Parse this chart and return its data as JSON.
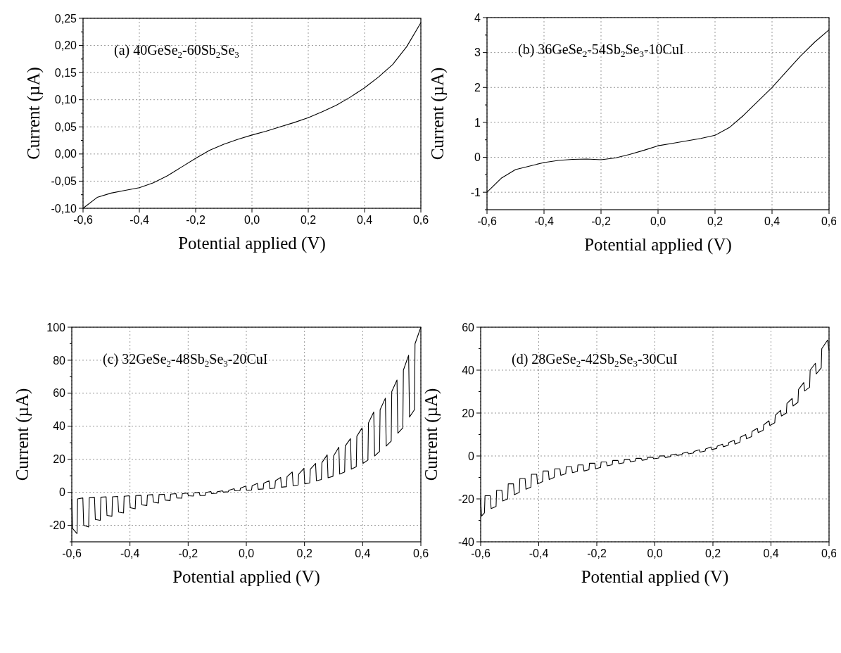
{
  "chart_data": [
    {
      "type": "line",
      "title": "(a) 40GeSe$_{2}$-60Sb$_{2}$Se$_{3}$",
      "xlabel": "Potential applied (V)",
      "ylabel": "Current (µA)",
      "grid": true,
      "xlim": [
        -0.6,
        0.6
      ],
      "xticks": [
        {
          "value": -0.6,
          "label": "-0,6"
        },
        {
          "value": -0.4,
          "label": "-0,4"
        },
        {
          "value": -0.2,
          "label": "-0,2"
        },
        {
          "value": 0,
          "label": "0,0"
        },
        {
          "value": 0.2,
          "label": "0,2"
        },
        {
          "value": 0.4,
          "label": "0,4"
        },
        {
          "value": 0.6,
          "label": "0,6"
        }
      ],
      "ylim": [
        -0.1,
        0.25
      ],
      "yticks": [
        {
          "value": -0.1,
          "label": "-0,10"
        },
        {
          "value": -0.075,
          "label": null
        },
        {
          "value": -0.05,
          "label": "-0,05"
        },
        {
          "value": -0.025,
          "label": null
        },
        {
          "value": 0,
          "label": "0,00"
        },
        {
          "value": 0.025,
          "label": null
        },
        {
          "value": 0.05,
          "label": "0,05"
        },
        {
          "value": 0.075,
          "label": null
        },
        {
          "value": 0.1,
          "label": "0,10"
        },
        {
          "value": 0.125,
          "label": null
        },
        {
          "value": 0.15,
          "label": "0,15"
        },
        {
          "value": 0.175,
          "label": null
        },
        {
          "value": 0.2,
          "label": "0,20"
        },
        {
          "value": 0.225,
          "label": null
        },
        {
          "value": 0.25,
          "label": "0,25"
        }
      ],
      "series": [
        {
          "color": "#000000",
          "x": [
            -0.6,
            -0.55,
            -0.5,
            -0.45,
            -0.4,
            -0.35,
            -0.3,
            -0.25,
            -0.2,
            -0.15,
            -0.1,
            -0.05,
            0,
            0.05,
            0.1,
            0.15,
            0.2,
            0.25,
            0.3,
            0.35,
            0.4,
            0.45,
            0.5,
            0.55,
            0.6
          ],
          "values": [
            -0.1,
            -0.08,
            -0.072,
            -0.067,
            -0.062,
            -0.053,
            -0.04,
            -0.024,
            -0.008,
            0.007,
            0.018,
            0.027,
            0.035,
            0.042,
            0.05,
            0.058,
            0.067,
            0.078,
            0.09,
            0.105,
            0.122,
            0.142,
            0.165,
            0.198,
            0.242
          ]
        }
      ]
    },
    {
      "type": "line",
      "title": "(b) 36GeSe$_{2}$-54Sb$_{2}$Se$_{3}$-10CuI",
      "xlabel": "Potential applied (V)",
      "ylabel": "Current (µA)",
      "grid": true,
      "xlim": [
        -0.6,
        0.6
      ],
      "xticks": [
        {
          "value": -0.6,
          "label": "-0,6"
        },
        {
          "value": -0.4,
          "label": "-0,4"
        },
        {
          "value": -0.2,
          "label": "-0,2"
        },
        {
          "value": 0,
          "label": "0,0"
        },
        {
          "value": 0.2,
          "label": "0,2"
        },
        {
          "value": 0.4,
          "label": "0,4"
        },
        {
          "value": 0.6,
          "label": "0,6"
        }
      ],
      "ylim": [
        -1.5,
        4
      ],
      "yticks": [
        {
          "value": -1.5,
          "label": null
        },
        -1,
        {
          "value": -0.5,
          "label": null
        },
        0,
        {
          "value": 0.5,
          "label": null
        },
        1,
        {
          "value": 1.5,
          "label": null
        },
        2,
        {
          "value": 2.5,
          "label": null
        },
        3,
        {
          "value": 3.5,
          "label": null
        },
        4
      ],
      "series": [
        {
          "color": "#000000",
          "x": [
            -0.6,
            -0.55,
            -0.5,
            -0.45,
            -0.4,
            -0.35,
            -0.3,
            -0.25,
            -0.2,
            -0.15,
            -0.1,
            -0.05,
            0,
            0.05,
            0.1,
            0.15,
            0.2,
            0.25,
            0.3,
            0.35,
            0.4,
            0.45,
            0.5,
            0.55,
            0.6
          ],
          "values": [
            -1.0,
            -0.6,
            -0.35,
            -0.25,
            -0.15,
            -0.09,
            -0.06,
            -0.05,
            -0.07,
            -0.02,
            0.08,
            0.2,
            0.33,
            0.4,
            0.47,
            0.54,
            0.63,
            0.85,
            1.2,
            1.6,
            2.0,
            2.45,
            2.9,
            3.3,
            3.65
          ]
        }
      ]
    },
    {
      "type": "line",
      "title": "(c) 32GeSe$_{2}$-48Sb$_{2}$Se$_{3}$-20CuI",
      "xlabel": "Potential applied (V)",
      "ylabel": "Current (µA)",
      "grid": true,
      "xlim": [
        -0.6,
        0.6
      ],
      "xticks": [
        {
          "value": -0.6,
          "label": "-0,6"
        },
        {
          "value": -0.4,
          "label": "-0,4"
        },
        {
          "value": -0.2,
          "label": "-0,2"
        },
        {
          "value": 0,
          "label": "0,0"
        },
        {
          "value": 0.2,
          "label": "0,2"
        },
        {
          "value": 0.4,
          "label": "0,4"
        },
        {
          "value": 0.6,
          "label": "0,6"
        }
      ],
      "ylim": [
        -30,
        100
      ],
      "yticks": [
        {
          "value": -30,
          "label": null
        },
        -20,
        {
          "value": -10,
          "label": null
        },
        0,
        {
          "value": 10,
          "label": null
        },
        20,
        {
          "value": 30,
          "label": null
        },
        40,
        {
          "value": 50,
          "label": null
        },
        60,
        {
          "value": 70,
          "label": null
        },
        80,
        {
          "value": 90,
          "label": null
        },
        100
      ],
      "series": [
        {
          "color": "#000000",
          "x": [
            -0.6,
            -0.597,
            -0.582,
            -0.58,
            -0.562,
            -0.559,
            -0.542,
            -0.54,
            -0.522,
            -0.519,
            -0.502,
            -0.5,
            -0.482,
            -0.479,
            -0.462,
            -0.46,
            -0.442,
            -0.439,
            -0.422,
            -0.42,
            -0.402,
            -0.399,
            -0.382,
            -0.38,
            -0.362,
            -0.359,
            -0.342,
            -0.34,
            -0.322,
            -0.319,
            -0.302,
            -0.3,
            -0.282,
            -0.279,
            -0.262,
            -0.26,
            -0.242,
            -0.239,
            -0.222,
            -0.22,
            -0.202,
            -0.199,
            -0.182,
            -0.18,
            -0.162,
            -0.159,
            -0.142,
            -0.14,
            -0.122,
            -0.119,
            -0.102,
            -0.1,
            -0.082,
            -0.079,
            -0.062,
            -0.06,
            -0.042,
            -0.039,
            -0.022,
            -0.02,
            -0.002,
            0.001,
            0.018,
            0.02,
            0.038,
            0.041,
            0.058,
            0.06,
            0.078,
            0.081,
            0.098,
            0.1,
            0.118,
            0.121,
            0.138,
            0.14,
            0.158,
            0.161,
            0.178,
            0.18,
            0.198,
            0.201,
            0.218,
            0.22,
            0.238,
            0.241,
            0.258,
            0.26,
            0.278,
            0.281,
            0.298,
            0.3,
            0.318,
            0.321,
            0.338,
            0.34,
            0.358,
            0.361,
            0.378,
            0.38,
            0.398,
            0.401,
            0.418,
            0.42,
            0.438,
            0.441,
            0.458,
            0.46,
            0.478,
            0.481,
            0.498,
            0.5,
            0.518,
            0.521,
            0.538,
            0.54,
            0.558,
            0.561,
            0.578,
            0.58,
            0.6
          ],
          "values": [
            -4,
            -22,
            -25,
            -4,
            -3.4,
            -20,
            -21,
            -3.3,
            -3.1,
            -16.5,
            -17,
            -3,
            -2.7,
            -14,
            -14.5,
            -2.7,
            -2.5,
            -12,
            -12.5,
            -2.4,
            -2.1,
            -9.3,
            -10,
            -2,
            -1.8,
            -7.6,
            -8,
            -1.7,
            -1.4,
            -6,
            -6.5,
            -1.4,
            -1.2,
            -4.7,
            -5,
            -1.1,
            -0.8,
            -3.4,
            -3.6,
            -0.8,
            -0.5,
            -2.1,
            -2.3,
            -0.4,
            -0.1,
            -2,
            -2,
            -0.2,
            0.5,
            -0.8,
            -0.6,
            0.3,
            0.9,
            0.1,
            0.3,
            1.2,
            2.2,
            0.9,
            1,
            2.5,
            3.8,
            1.2,
            1.4,
            4,
            5.4,
            1.8,
            2,
            5.5,
            7,
            2.2,
            2.5,
            7,
            9,
            3.1,
            3.4,
            9.5,
            12.3,
            4,
            4.4,
            11,
            14.5,
            5.1,
            5.7,
            14,
            17.5,
            7,
            7.7,
            18,
            22.7,
            8.8,
            9.7,
            22,
            27.3,
            11,
            12.3,
            28,
            32.5,
            14,
            15.5,
            34,
            39,
            17.5,
            19.5,
            42,
            48.6,
            22,
            24.7,
            50,
            57,
            28,
            31,
            61,
            68,
            35.8,
            39,
            74,
            83,
            45.6,
            50,
            90,
            100
          ]
        }
      ]
    },
    {
      "type": "line",
      "title": "(d) 28GeSe$_{2}$-42Sb$_{2}$Se$_{3}$-30CuI",
      "xlabel": "Potential applied (V)",
      "ylabel": "Current (µA)",
      "grid": true,
      "xlim": [
        -0.6,
        0.6
      ],
      "xticks": [
        {
          "value": -0.6,
          "label": "-0,6"
        },
        {
          "value": -0.4,
          "label": "-0,4"
        },
        {
          "value": -0.2,
          "label": "-0,2"
        },
        {
          "value": 0,
          "label": "0,0"
        },
        {
          "value": 0.2,
          "label": "0,2"
        },
        {
          "value": 0.4,
          "label": "0,4"
        },
        {
          "value": 0.6,
          "label": "0,6"
        }
      ],
      "ylim": [
        -40,
        60
      ],
      "yticks": [
        -40,
        {
          "value": -30,
          "label": null
        },
        -20,
        {
          "value": -10,
          "label": null
        },
        0,
        {
          "value": 10,
          "label": null
        },
        20,
        {
          "value": 30,
          "label": null
        },
        40,
        {
          "value": 50,
          "label": null
        },
        60
      ],
      "series": [
        {
          "color": "#000000",
          "x": [
            -0.6,
            -0.597,
            -0.587,
            -0.585,
            -0.567,
            -0.564,
            -0.547,
            -0.545,
            -0.527,
            -0.524,
            -0.507,
            -0.505,
            -0.487,
            -0.484,
            -0.467,
            -0.465,
            -0.447,
            -0.444,
            -0.427,
            -0.425,
            -0.407,
            -0.404,
            -0.387,
            -0.385,
            -0.367,
            -0.364,
            -0.347,
            -0.345,
            -0.327,
            -0.324,
            -0.307,
            -0.305,
            -0.287,
            -0.284,
            -0.267,
            -0.265,
            -0.247,
            -0.244,
            -0.227,
            -0.225,
            -0.207,
            -0.204,
            -0.187,
            -0.185,
            -0.167,
            -0.164,
            -0.147,
            -0.145,
            -0.127,
            -0.124,
            -0.107,
            -0.105,
            -0.087,
            -0.084,
            -0.067,
            -0.065,
            -0.047,
            -0.044,
            -0.027,
            -0.025,
            -0.007,
            -0.004,
            0.013,
            0.015,
            0.033,
            0.036,
            0.053,
            0.055,
            0.073,
            0.076,
            0.093,
            0.095,
            0.113,
            0.116,
            0.133,
            0.135,
            0.153,
            0.156,
            0.173,
            0.175,
            0.193,
            0.196,
            0.213,
            0.215,
            0.233,
            0.236,
            0.253,
            0.255,
            0.273,
            0.276,
            0.293,
            0.295,
            0.313,
            0.316,
            0.333,
            0.335,
            0.353,
            0.356,
            0.373,
            0.375,
            0.393,
            0.396,
            0.413,
            0.415,
            0.433,
            0.436,
            0.453,
            0.455,
            0.473,
            0.476,
            0.493,
            0.495,
            0.513,
            0.516,
            0.533,
            0.535,
            0.553,
            0.556,
            0.573,
            0.575,
            0.595,
            0.6
          ],
          "values": [
            -20.5,
            -28,
            -26.5,
            -18.5,
            -18.5,
            -24.5,
            -23.5,
            -16,
            -16,
            -21,
            -20,
            -13,
            -13,
            -18,
            -17,
            -10.5,
            -10.5,
            -15.5,
            -14.5,
            -8.5,
            -8.5,
            -13,
            -12,
            -7,
            -7,
            -11,
            -10,
            -6,
            -6,
            -9,
            -8.3,
            -5,
            -5,
            -7.8,
            -7.2,
            -4.2,
            -4.2,
            -7,
            -6.4,
            -3.4,
            -3.4,
            -6,
            -5.3,
            -2.8,
            -2.8,
            -4.6,
            -4.1,
            -2.1,
            -2.1,
            -3.6,
            -3.2,
            -1.6,
            -1.6,
            -2.7,
            -2.3,
            -1.1,
            -1.1,
            -2,
            -1.6,
            -0.6,
            -0.6,
            -1.3,
            -1,
            0,
            0.1,
            -0.7,
            -0.3,
            0.5,
            0.9,
            0.3,
            0.6,
            1.2,
            1.8,
            1,
            1.4,
            2.1,
            2.9,
            1.8,
            2.3,
            3.3,
            4.2,
            3,
            3.5,
            4.6,
            5.5,
            4.3,
            5,
            6.3,
            7.3,
            5.5,
            6.5,
            8.8,
            10,
            8,
            9,
            11.5,
            12.9,
            10.9,
            12,
            14.5,
            16.4,
            14.2,
            15.5,
            19,
            21.3,
            18.6,
            20,
            24.5,
            26.8,
            23.3,
            25,
            31,
            34.2,
            30.3,
            32,
            40,
            43.2,
            38.2,
            41,
            50,
            54,
            49
          ]
        }
      ]
    }
  ]
}
